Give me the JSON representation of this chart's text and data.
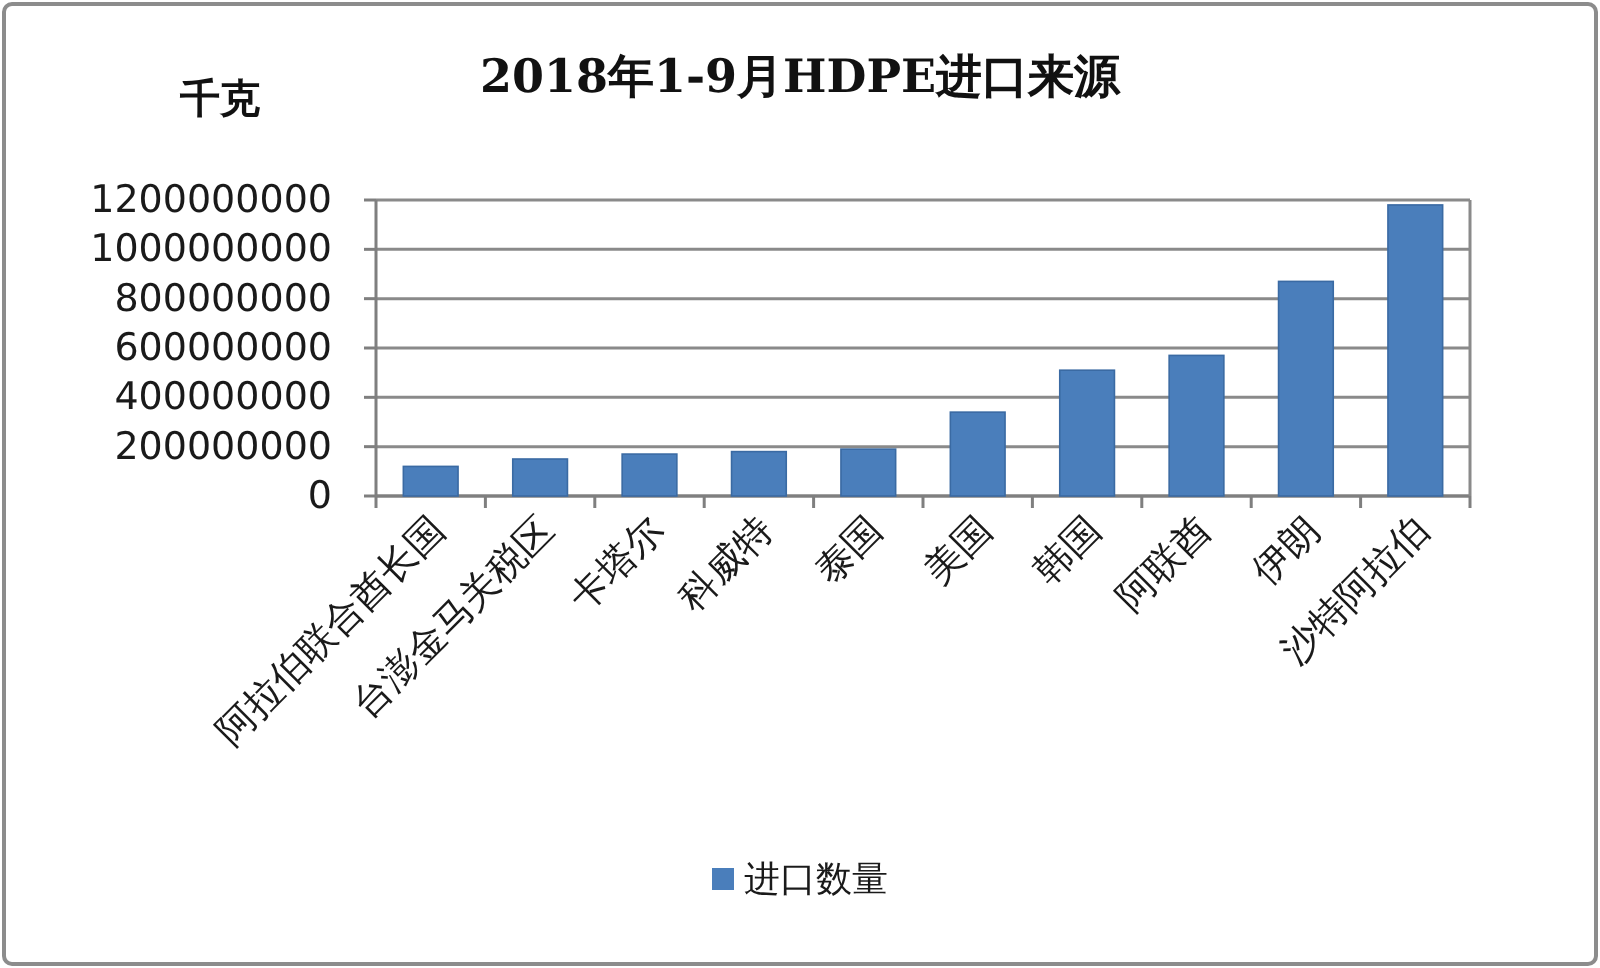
{
  "chart_data": {
    "type": "bar",
    "title": "2018年1-9月HDPE进口来源",
    "ylabel": "千克",
    "categories": [
      "阿拉伯联合酋长国",
      "台澎金马关税区",
      "卡塔尔",
      "科威特",
      "泰国",
      "美国",
      "韩国",
      "阿联酋",
      "伊朗",
      "沙特阿拉伯"
    ],
    "series": [
      {
        "name": "进口数量",
        "color": "#4a7ebb",
        "values": [
          120000000,
          150000000,
          170000000,
          180000000,
          190000000,
          340000000,
          510000000,
          570000000,
          870000000,
          1180000000
        ]
      }
    ],
    "ylim": [
      0,
      1200000000
    ],
    "yticks": [
      0,
      200000000,
      400000000,
      600000000,
      800000000,
      1000000000,
      1200000000
    ],
    "grid": "y",
    "legend": "bottom"
  }
}
